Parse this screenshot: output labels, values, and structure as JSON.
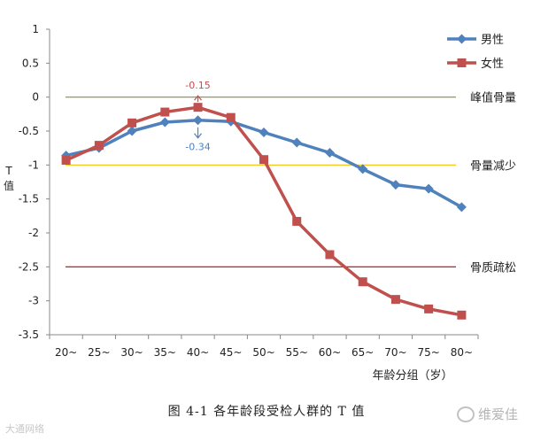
{
  "chart_data": {
    "type": "line",
    "title": "",
    "categories": [
      "20~",
      "25~",
      "30~",
      "35~",
      "40~",
      "45~",
      "50~",
      "55~",
      "60~",
      "65~",
      "70~",
      "75~",
      "80~"
    ],
    "series": [
      {
        "name": "男性",
        "color": "#4F81BD",
        "marker": "diamond",
        "values": [
          -0.86,
          -0.75,
          -0.5,
          -0.37,
          -0.34,
          -0.36,
          -0.52,
          -0.67,
          -0.82,
          -1.06,
          -1.29,
          -1.35,
          -1.62
        ]
      },
      {
        "name": "女性",
        "color": "#C0504D",
        "marker": "square",
        "values": [
          -0.93,
          -0.71,
          -0.38,
          -0.22,
          -0.15,
          -0.3,
          -0.92,
          -1.83,
          -2.32,
          -2.72,
          -2.98,
          -3.12,
          -3.21
        ]
      }
    ],
    "reference_lines": [
      {
        "label": "峰值骨量",
        "value": 0,
        "color": "#8B8B3A"
      },
      {
        "label": "骨量减少",
        "value": -1,
        "color": "#F2C200"
      },
      {
        "label": "骨质疏松",
        "value": -2.5,
        "color": "#C00000"
      }
    ],
    "annotations": [
      {
        "text": "-0.15",
        "series": "女性",
        "category": "40~",
        "direction": "up",
        "color": "#C0504D"
      },
      {
        "text": "-0.34",
        "series": "男性",
        "category": "40~",
        "direction": "down",
        "color": "#4F81BD"
      }
    ],
    "yticks": [
      "1",
      "0.5",
      "0",
      "-0.5",
      "-1",
      "-1.5",
      "-2",
      "-2.5",
      "-3",
      "-3.5"
    ],
    "ylim": [
      -3.5,
      1
    ],
    "ylabel": "T值",
    "xlabel": "年龄分组（岁）",
    "legend_position": "top-right"
  },
  "caption": "图 4-1   各年龄段受检人群的 T 值",
  "watermark_left": "大通网络",
  "watermark_right": "维爱佳"
}
